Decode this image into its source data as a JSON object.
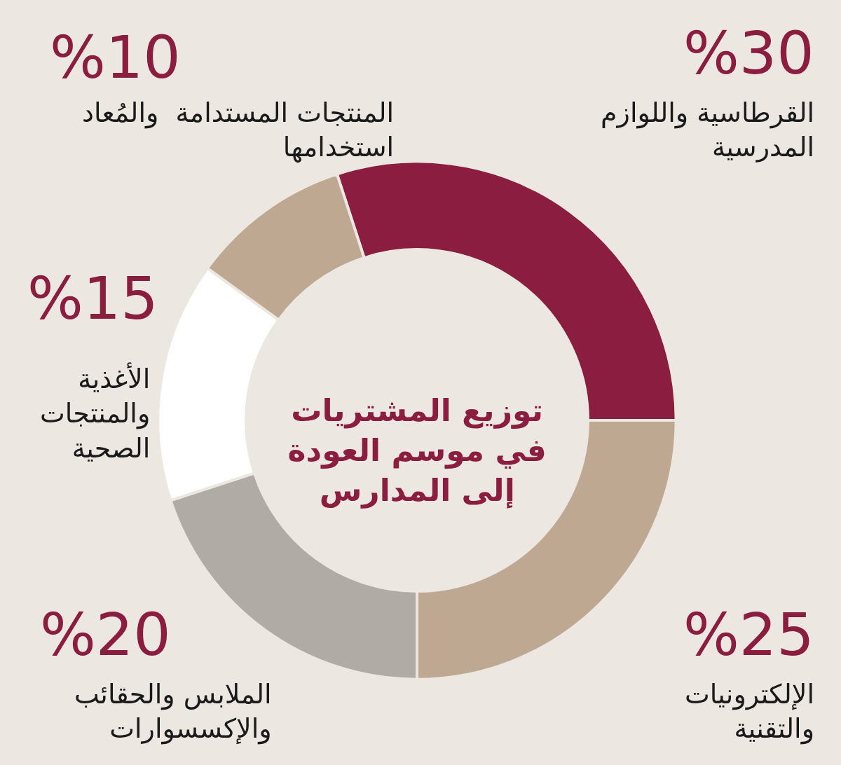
{
  "chart_data": {
    "type": "donut",
    "title": "توزيع المشتريات\nفي موسم العودة\nإلى المدارس",
    "categories": [
      "القرطاسية واللوازم\nالمدرسية",
      "الإلكترونيات\nوالتقنية",
      "الملابس والحقائب\nوالإكسسوارات",
      "الأغذية\nوالمنتجات\nالصحية",
      "المنتجات المستدامة  والمُعاد\nاستخدامها"
    ],
    "values": [
      30,
      25,
      20,
      15,
      10
    ],
    "value_labels": [
      "%30",
      "%25",
      "%20",
      "%15",
      "%10"
    ],
    "colors": [
      "#8b1e40",
      "#bea891",
      "#b0aba4",
      "#ffffff",
      "#bea891"
    ]
  }
}
